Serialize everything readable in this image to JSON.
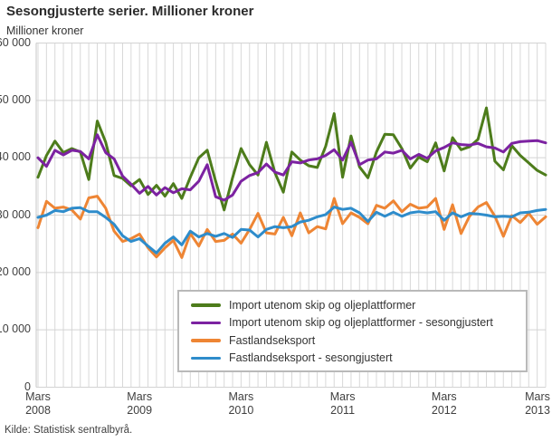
{
  "header": {
    "title": "Sesongjusterte serier. Millioner kroner",
    "unit_label": "Millioner kroner"
  },
  "footer": {
    "source": "Kilde: Statistisk sentralbyrå."
  },
  "chart_data": {
    "type": "line",
    "title": "Sesongjusterte serier. Millioner kroner",
    "ylabel": "Millioner kroner",
    "xlabel": "",
    "ylim": [
      0,
      60000
    ],
    "grid": "monthly vertical gridlines and horizontal gridlines every 10000, light gray, white background",
    "legend_position": "boxed legend inside plot, bottom right",
    "y_ticks": [
      0,
      10000,
      20000,
      30000,
      40000,
      50000,
      60000
    ],
    "y_tick_labels": [
      "0",
      "10 000",
      "20 000",
      "30 000",
      "40 000",
      "50 000",
      "60 000"
    ],
    "x_tick_labels": [
      {
        "line1": "Mars",
        "line2": "2008",
        "month_index": 0
      },
      {
        "line1": "Mars",
        "line2": "2009",
        "month_index": 12
      },
      {
        "line1": "Mars",
        "line2": "2010",
        "month_index": 24
      },
      {
        "line1": "Mars",
        "line2": "2011",
        "month_index": 36
      },
      {
        "line1": "Mars",
        "line2": "2012",
        "month_index": 48
      },
      {
        "line1": "Mars",
        "line2": "2013",
        "month_index": 60
      }
    ],
    "x": [
      "2008-03",
      "2008-04",
      "2008-05",
      "2008-06",
      "2008-07",
      "2008-08",
      "2008-09",
      "2008-10",
      "2008-11",
      "2008-12",
      "2009-01",
      "2009-02",
      "2009-03",
      "2009-04",
      "2009-05",
      "2009-06",
      "2009-07",
      "2009-08",
      "2009-09",
      "2009-10",
      "2009-11",
      "2009-12",
      "2010-01",
      "2010-02",
      "2010-03",
      "2010-04",
      "2010-05",
      "2010-06",
      "2010-07",
      "2010-08",
      "2010-09",
      "2010-10",
      "2010-11",
      "2010-12",
      "2011-01",
      "2011-02",
      "2011-03",
      "2011-04",
      "2011-05",
      "2011-06",
      "2011-07",
      "2011-08",
      "2011-09",
      "2011-10",
      "2011-11",
      "2011-12",
      "2012-01",
      "2012-02",
      "2012-03",
      "2012-04",
      "2012-05",
      "2012-06",
      "2012-07",
      "2012-08",
      "2012-09",
      "2012-10",
      "2012-11",
      "2012-12",
      "2013-01",
      "2013-02",
      "2013-03"
    ],
    "series": [
      {
        "name": "Import utenom skip og oljeplattformer",
        "color": "#4d7c1b",
        "values": [
          36600,
          40400,
          42900,
          40900,
          41600,
          41000,
          36200,
          46400,
          42700,
          36900,
          36400,
          35100,
          36200,
          33600,
          35200,
          33300,
          35500,
          32900,
          36600,
          40000,
          41300,
          35900,
          30900,
          36500,
          41600,
          38800,
          37000,
          42700,
          37400,
          34000,
          41000,
          39600,
          38600,
          38300,
          42000,
          47700,
          36600,
          43800,
          38400,
          36500,
          41000,
          44100,
          44000,
          41600,
          38200,
          40100,
          39300,
          42600,
          37700,
          43500,
          41400,
          41900,
          43200,
          48700,
          39400,
          37900,
          42100,
          40400,
          39100,
          37800,
          37000
        ]
      },
      {
        "name": "Import utenom skip og oljeplattformer - sesongjustert",
        "color": "#7c22a1",
        "values": [
          40000,
          38500,
          41300,
          40500,
          41300,
          41100,
          39800,
          44000,
          40900,
          39800,
          36800,
          35400,
          33800,
          35000,
          33500,
          34800,
          33900,
          34600,
          34400,
          35900,
          38800,
          33200,
          32600,
          33500,
          35900,
          36900,
          37400,
          38900,
          37500,
          37000,
          39300,
          39100,
          39600,
          39800,
          40400,
          41400,
          39600,
          42700,
          38800,
          39600,
          39800,
          41000,
          40800,
          41300,
          39800,
          40600,
          39900,
          41200,
          41800,
          42600,
          42300,
          42200,
          42500,
          41900,
          41700,
          41000,
          42500,
          42800,
          42900,
          43000,
          42600
        ]
      },
      {
        "name": "Fastlandseksport",
        "color": "#ee8534",
        "values": [
          27800,
          32400,
          31200,
          31400,
          30900,
          29300,
          33000,
          33300,
          31200,
          27200,
          25400,
          25900,
          26700,
          24300,
          22700,
          24300,
          25600,
          22600,
          26800,
          24600,
          27500,
          25400,
          25600,
          26700,
          25100,
          27500,
          30300,
          26900,
          26700,
          29600,
          26400,
          30400,
          26900,
          28000,
          27600,
          32900,
          28500,
          30400,
          29600,
          28500,
          31700,
          31200,
          32500,
          30600,
          31900,
          31200,
          31400,
          32900,
          27500,
          31800,
          26800,
          29800,
          31400,
          32200,
          29800,
          26300,
          29900,
          28700,
          30300,
          28400,
          29700
        ]
      },
      {
        "name": "Fastlandseksport - sesongjustert",
        "color": "#2e8ccb",
        "values": [
          29600,
          30000,
          30800,
          30600,
          31200,
          31300,
          30600,
          30600,
          29600,
          28400,
          26400,
          25400,
          25900,
          24600,
          23400,
          25100,
          26200,
          24800,
          27200,
          26200,
          26800,
          26300,
          26800,
          26100,
          27500,
          27400,
          26200,
          27500,
          28000,
          27800,
          28000,
          28800,
          29100,
          29700,
          30100,
          31400,
          31000,
          31200,
          30400,
          28900,
          30500,
          29800,
          30500,
          29800,
          30400,
          30600,
          30400,
          30600,
          29100,
          30400,
          29700,
          30300,
          30200,
          30000,
          29700,
          29800,
          29700,
          30400,
          30500,
          30800,
          31000
        ]
      }
    ]
  }
}
